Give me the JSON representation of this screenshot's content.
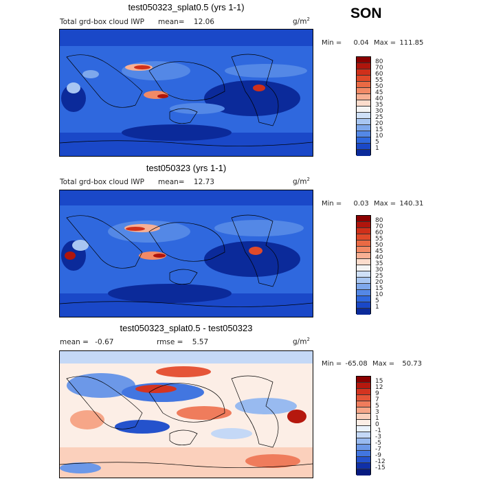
{
  "season": "SON",
  "panels": [
    {
      "title": "test050323_splat0.5 (yrs 1-1)",
      "subtitle": "Total grd-box cloud IWP",
      "mean_label": "mean=",
      "mean_value": "12.06",
      "rmse_label": "",
      "rmse_value": "",
      "units": "g/m",
      "units_exp": "2",
      "min_label": "Min =",
      "min_value": "0.04",
      "max_label": "Max =",
      "max_value": "111.85",
      "colorbar": {
        "labels": [
          "80",
          "70",
          "60",
          "55",
          "50",
          "45",
          "40",
          "35",
          "30",
          "25",
          "20",
          "15",
          "10",
          "5",
          "1"
        ],
        "colors": [
          "#8b0000",
          "#b0150c",
          "#d0301a",
          "#e04a2a",
          "#ea6a44",
          "#f28a66",
          "#f8b094",
          "#fcdccc",
          "#f4f4f4",
          "#cfe0f7",
          "#a8c6f2",
          "#7ea8ec",
          "#5488e6",
          "#2f68de",
          "#1a48c8",
          "#0b2a9a"
        ]
      }
    },
    {
      "title": "test050323 (yrs 1-1)",
      "subtitle": "Total grd-box cloud IWP",
      "mean_label": "mean=",
      "mean_value": "12.73",
      "rmse_label": "",
      "rmse_value": "",
      "units": "g/m",
      "units_exp": "2",
      "min_label": "Min =",
      "min_value": "0.03",
      "max_label": "Max =",
      "max_value": "140.31",
      "colorbar": {
        "labels": [
          "80",
          "70",
          "60",
          "55",
          "50",
          "45",
          "40",
          "35",
          "30",
          "25",
          "20",
          "15",
          "10",
          "5",
          "1"
        ],
        "colors": [
          "#8b0000",
          "#b0150c",
          "#d0301a",
          "#e04a2a",
          "#ea6a44",
          "#f28a66",
          "#f8b094",
          "#fcdccc",
          "#f4f4f4",
          "#cfe0f7",
          "#a8c6f2",
          "#7ea8ec",
          "#5488e6",
          "#2f68de",
          "#1a48c8",
          "#0b2a9a"
        ]
      }
    },
    {
      "title": "test050323_splat0.5 - test050323",
      "subtitle": "",
      "mean_label": "mean =",
      "mean_value": "-0.67",
      "rmse_label": "rmse =",
      "rmse_value": "5.57",
      "units": "g/m",
      "units_exp": "2",
      "min_label": "Min =",
      "min_value": "-65.08",
      "max_label": "Max =",
      "max_value": "50.73",
      "colorbar": {
        "labels": [
          "15",
          "12",
          "9",
          "7",
          "5",
          "3",
          "1",
          "0",
          "-1",
          "-3",
          "-5",
          "-7",
          "-9",
          "-12",
          "-15"
        ],
        "colors": [
          "#8b0000",
          "#b5180e",
          "#d43420",
          "#e55538",
          "#ef7c5c",
          "#f6a688",
          "#fbd0bc",
          "#fceee6",
          "#eaf2fc",
          "#c4d8f6",
          "#98baf0",
          "#6c98e8",
          "#4276e0",
          "#2452cc",
          "#1030a8",
          "#061a80"
        ]
      }
    }
  ]
}
